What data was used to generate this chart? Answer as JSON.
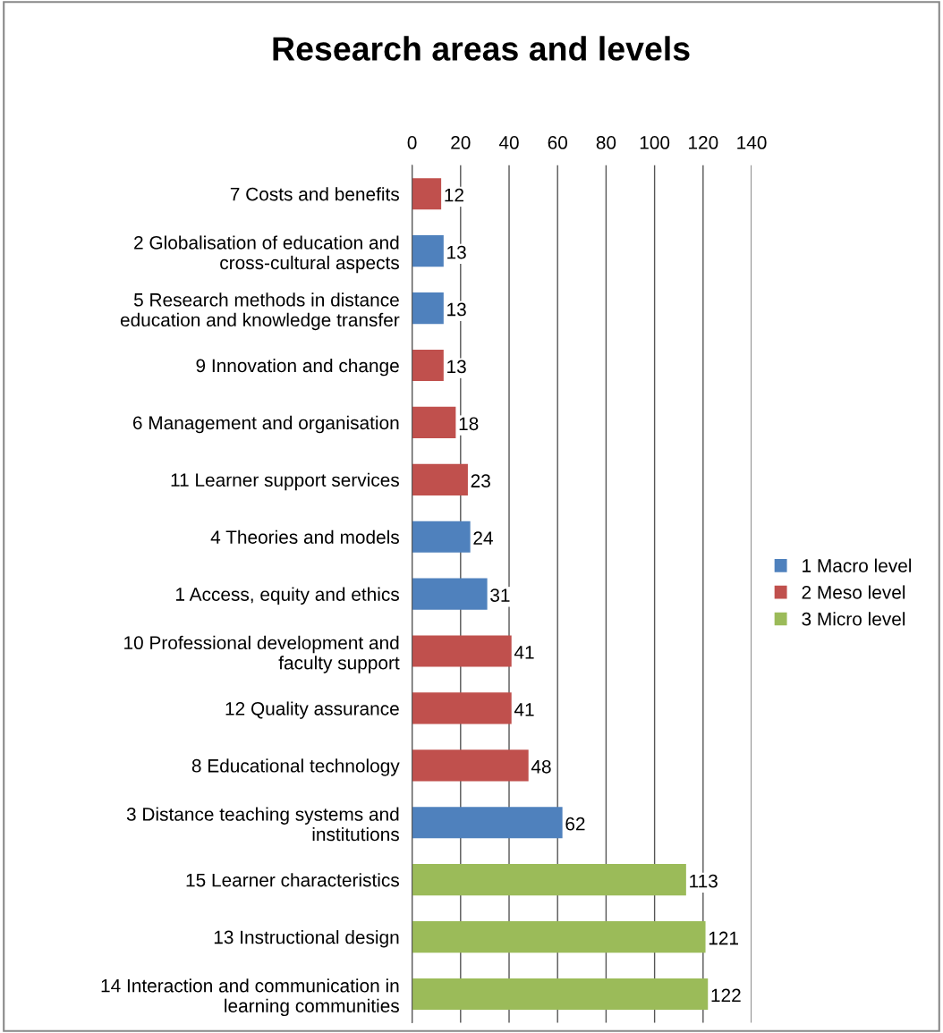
{
  "chart_data": {
    "type": "bar",
    "title": "Research areas and levels",
    "orientation": "horizontal",
    "stacked": true,
    "categories": [
      "7 Costs and benefits",
      "2 Globalisation of education and\ncross-cultural aspects",
      "5 Research methods in distance\neducation and knowledge transfer",
      "9 Innovation and change",
      "6 Management and organisation",
      "11 Learner support services",
      "4 Theories and models",
      "1 Access, equity and ethics",
      "10 Professional development and\nfaculty support",
      "12 Quality assurance",
      "8 Educational technology",
      "3 Distance teaching systems and\ninstitutions",
      "15 Learner characteristics",
      "13 Instructional design",
      "14 Interaction and communication in\nlearning communities"
    ],
    "series": [
      {
        "name": "1 Macro level",
        "color": "#4f81bd",
        "values": [
          null,
          13,
          13,
          null,
          null,
          null,
          24,
          31,
          null,
          null,
          null,
          62,
          null,
          null,
          null
        ]
      },
      {
        "name": "2 Meso level",
        "color": "#c0504d",
        "values": [
          12,
          null,
          null,
          13,
          18,
          23,
          null,
          null,
          41,
          41,
          48,
          null,
          null,
          null,
          null
        ]
      },
      {
        "name": "3 Micro level",
        "color": "#9bbb59",
        "values": [
          null,
          null,
          null,
          null,
          null,
          null,
          null,
          null,
          null,
          null,
          null,
          null,
          113,
          121,
          122
        ]
      }
    ],
    "xlim": [
      0,
      140
    ],
    "xticks": [
      0,
      20,
      40,
      60,
      80,
      100,
      120,
      140
    ],
    "grid": "x",
    "legend": "right",
    "data_labels": true
  }
}
